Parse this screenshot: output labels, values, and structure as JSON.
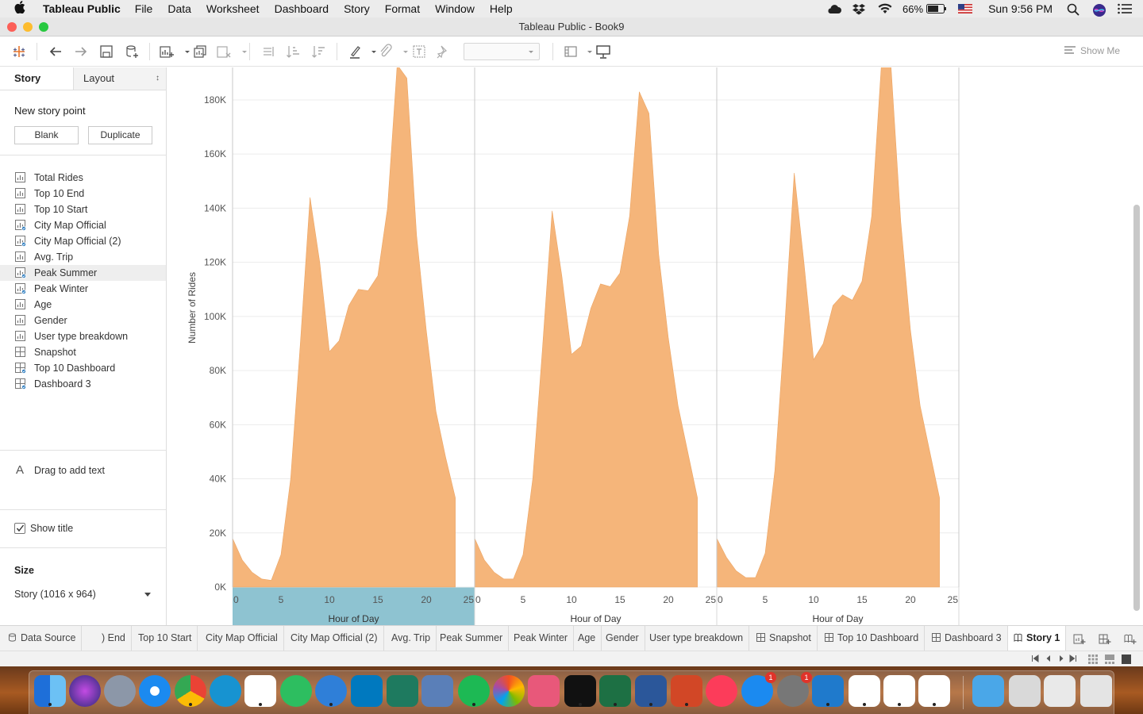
{
  "menubar": {
    "app_name": "Tableau Public",
    "items": [
      "File",
      "Data",
      "Worksheet",
      "Dashboard",
      "Story",
      "Format",
      "Window",
      "Help"
    ],
    "battery": "66%",
    "clock": "Sun 9:56 PM"
  },
  "window": {
    "title": "Tableau Public - Book9"
  },
  "toolbar": {
    "show_me_label": "Show Me"
  },
  "sidebar": {
    "tab_story": "Story",
    "tab_layout": "Layout",
    "new_story_point": "New story point",
    "blank_label": "Blank",
    "duplicate_label": "Duplicate",
    "sheets": [
      {
        "label": "Total Rides",
        "type": "worksheet"
      },
      {
        "label": "Top 10 End",
        "type": "worksheet"
      },
      {
        "label": "Top 10 Start",
        "type": "worksheet"
      },
      {
        "label": "City Map Official",
        "type": "worksheet-used"
      },
      {
        "label": "City Map Official (2)",
        "type": "worksheet-used"
      },
      {
        "label": "Avg. Trip",
        "type": "worksheet"
      },
      {
        "label": "Peak Summer",
        "type": "worksheet-used"
      },
      {
        "label": "Peak Winter",
        "type": "worksheet-used"
      },
      {
        "label": "Age",
        "type": "worksheet"
      },
      {
        "label": "Gender",
        "type": "worksheet"
      },
      {
        "label": "User type breakdown",
        "type": "worksheet"
      },
      {
        "label": "Snapshot",
        "type": "dashboard"
      },
      {
        "label": "Top 10 Dashboard",
        "type": "dashboard-used"
      },
      {
        "label": "Dashboard 3",
        "type": "dashboard-used"
      }
    ],
    "drag_text": "Drag to add text",
    "show_title": "Show title",
    "size_label": "Size",
    "size_value": "Story (1016 x 964)"
  },
  "chart_data": {
    "type": "area",
    "ylabel": "Number of Rides",
    "xlabel": "Hour of Day",
    "ylim": [
      0,
      192000
    ],
    "yticks": [
      0,
      20000,
      40000,
      60000,
      80000,
      100000,
      120000,
      140000,
      160000,
      180000
    ],
    "ytick_labels": [
      "0K",
      "20K",
      "40K",
      "60K",
      "80K",
      "100K",
      "120K",
      "140K",
      "160K",
      "180K"
    ],
    "xlim": [
      0,
      25
    ],
    "xticks": [
      0,
      5,
      10,
      15,
      20,
      25
    ],
    "color": "#f5b57a",
    "highlight_color": "#8ec3d1",
    "panels": [
      {
        "x": [
          0,
          1,
          2,
          3,
          4,
          5,
          6,
          7,
          8,
          9,
          10,
          11,
          12,
          13,
          14,
          15,
          16,
          17,
          18,
          19,
          20,
          21,
          22,
          23
        ],
        "y": [
          18000,
          10000,
          5500,
          3000,
          2500,
          12000,
          40000,
          90000,
          144000,
          120000,
          87000,
          91000,
          104000,
          110000,
          109500,
          115000,
          140000,
          193000,
          188000,
          130000,
          95000,
          65000,
          48000,
          33000
        ]
      },
      {
        "x": [
          0,
          1,
          2,
          3,
          4,
          5,
          6,
          7,
          8,
          9,
          10,
          11,
          12,
          13,
          14,
          15,
          16,
          17,
          18,
          19,
          20,
          21,
          22,
          23
        ],
        "y": [
          18000,
          10000,
          5500,
          3000,
          3000,
          12000,
          40000,
          88000,
          139000,
          115000,
          86000,
          89000,
          103000,
          112000,
          111000,
          116000,
          137000,
          183000,
          175000,
          123000,
          92000,
          67000,
          50000,
          33000
        ]
      },
      {
        "x": [
          0,
          1,
          2,
          3,
          4,
          5,
          6,
          7,
          8,
          9,
          10,
          11,
          12,
          13,
          14,
          15,
          16,
          17,
          18,
          19,
          20,
          21,
          22,
          23
        ],
        "y": [
          18000,
          11000,
          6000,
          3500,
          3500,
          12500,
          43000,
          95000,
          153000,
          120000,
          84000,
          90000,
          104000,
          108000,
          106000,
          113000,
          137000,
          193000,
          192000,
          135000,
          95000,
          67000,
          50000,
          33000
        ]
      }
    ]
  },
  "tabs": [
    {
      "label": "Data Source",
      "icon": "database-icon",
      "active": false
    },
    {
      "label": ") End",
      "icon": "",
      "active": false
    },
    {
      "label": "Top 10 Start",
      "icon": "",
      "active": false
    },
    {
      "label": "City Map Official",
      "icon": "",
      "active": false
    },
    {
      "label": "City Map Official (2)",
      "icon": "",
      "active": false
    },
    {
      "label": "Avg. Trip",
      "icon": "",
      "active": false
    },
    {
      "label": "Peak Summer",
      "icon": "",
      "active": false
    },
    {
      "label": "Peak Winter",
      "icon": "",
      "active": false
    },
    {
      "label": "Age",
      "icon": "",
      "active": false
    },
    {
      "label": "Gender",
      "icon": "",
      "active": false
    },
    {
      "label": "User type breakdown",
      "icon": "",
      "active": false
    },
    {
      "label": "Snapshot",
      "icon": "dashboard-icon",
      "active": false
    },
    {
      "label": "Top 10 Dashboard",
      "icon": "dashboard-icon",
      "active": false
    },
    {
      "label": "Dashboard 3",
      "icon": "dashboard-icon",
      "active": false
    },
    {
      "label": "Story 1",
      "icon": "story-icon",
      "active": true
    }
  ],
  "dock": {
    "badges": {
      "app-store": "1",
      "system-preferences": "1"
    }
  }
}
